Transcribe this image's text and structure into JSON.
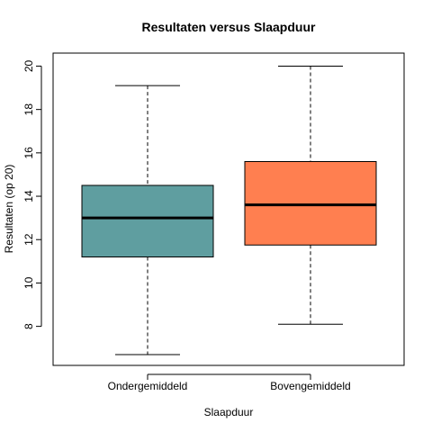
{
  "chart_data": {
    "type": "box",
    "title": "Resultaten versus Slaapduur",
    "xlabel": "Slaapduur",
    "ylabel": "Resultaten (op 20)",
    "ylim": [
      6.2,
      20.6
    ],
    "yticks": [
      "8",
      "10",
      "12",
      "14",
      "16",
      "18",
      "20"
    ],
    "grid": false,
    "categories": [
      "Ondergemiddeld",
      "Bovengemiddeld"
    ],
    "boxes": [
      {
        "category": "Ondergemiddeld",
        "min": 6.7,
        "q1": 11.2,
        "median": 13.0,
        "q3": 14.5,
        "max": 19.1,
        "color": "#5f9ea0"
      },
      {
        "category": "Bovengemiddeld",
        "min": 8.1,
        "q1": 11.75,
        "median": 13.6,
        "q3": 15.6,
        "max": 20.0,
        "color": "#ff7f50"
      }
    ]
  }
}
